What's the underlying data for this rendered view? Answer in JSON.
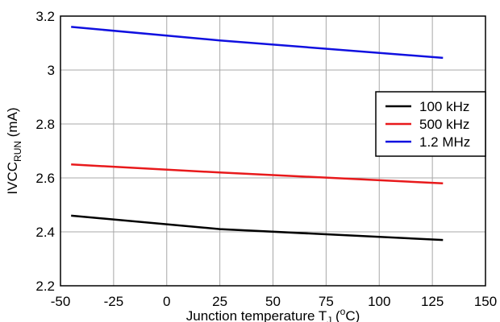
{
  "chart_data": {
    "type": "line",
    "title": "",
    "xlabel": {
      "main": "Junction temperature T",
      "sub": "J",
      "suffix_open": " (",
      "sup": "o",
      "suffix_close": "C)"
    },
    "ylabel": {
      "main": "IVCC",
      "sub": "RUN",
      "suffix": " (mA)"
    },
    "xlim": [
      -50,
      150
    ],
    "ylim": [
      2.2,
      3.2
    ],
    "x_ticks": [
      -50,
      -25,
      0,
      25,
      50,
      75,
      100,
      125,
      150
    ],
    "x_tick_labels": [
      "-50",
      "-25",
      "0",
      "25",
      "50",
      "75",
      "100",
      "125",
      "150"
    ],
    "y_ticks": [
      2.2,
      2.4,
      2.6,
      2.8,
      3.0,
      3.2
    ],
    "y_tick_labels": [
      "2.2",
      "2.4",
      "2.6",
      "2.8",
      "3",
      "3.2"
    ],
    "grid": true,
    "legend_position": "right",
    "series": [
      {
        "name": "100 kHz",
        "color": "#000000",
        "x": [
          -45,
          25,
          130
        ],
        "y": [
          2.46,
          2.41,
          2.37
        ]
      },
      {
        "name": "500 kHz",
        "color": "#e8191b",
        "x": [
          -45,
          25,
          130
        ],
        "y": [
          2.65,
          2.62,
          2.58
        ]
      },
      {
        "name": "1.2 MHz",
        "color": "#1010e0",
        "x": [
          -45,
          25,
          130
        ],
        "y": [
          3.16,
          3.11,
          3.045
        ]
      }
    ]
  }
}
